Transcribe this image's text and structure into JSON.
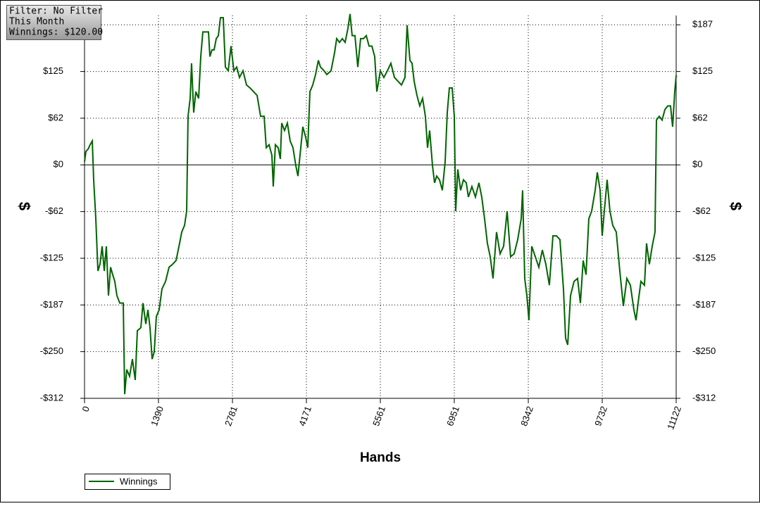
{
  "chart_data": {
    "type": "line",
    "info_lines": [
      "Filter: No Filter",
      "This Month",
      "Winnings: $120.00"
    ],
    "x_label": "Hands",
    "y_label": "$",
    "y2_label": "$",
    "xlim": [
      0,
      11122
    ],
    "xticks": [
      0,
      1390,
      2781,
      4171,
      5561,
      6951,
      8342,
      9732,
      11122
    ],
    "ylim": [
      -312.5,
      200
    ],
    "yticks": [
      {
        "value": -312.5,
        "label": "-$312"
      },
      {
        "value": -250,
        "label": "-$250"
      },
      {
        "value": -187.5,
        "label": "-$187"
      },
      {
        "value": -125,
        "label": "-$125"
      },
      {
        "value": -62.5,
        "label": "-$62"
      },
      {
        "value": 0,
        "label": "$0"
      },
      {
        "value": 62.5,
        "label": "$62"
      },
      {
        "value": 125,
        "label": "$125"
      },
      {
        "value": 187.5,
        "label": "$187"
      }
    ],
    "grid": true,
    "legend": "bottom-left",
    "x": [
      0,
      26,
      66,
      106,
      146,
      172,
      212,
      252,
      291,
      331,
      371,
      410,
      450,
      490,
      530,
      569,
      609,
      662,
      728,
      755,
      794,
      847,
      900,
      953,
      993,
      1059,
      1099,
      1152,
      1192,
      1231,
      1271,
      1311,
      1350,
      1403,
      1456,
      1523,
      1589,
      1655,
      1721,
      1787,
      1827,
      1880,
      1920,
      1946,
      1986,
      2012,
      2052,
      2092,
      2145,
      2185,
      2224,
      2277,
      2330,
      2357,
      2396,
      2436,
      2476,
      2516,
      2555,
      2608,
      2648,
      2701,
      2754,
      2807,
      2860,
      2913,
      2979,
      3045,
      3111,
      3178,
      3244,
      3310,
      3376,
      3416,
      3469,
      3522,
      3548,
      3588,
      3641,
      3681,
      3707,
      3760,
      3813,
      3866,
      3919,
      3972,
      4012,
      4051,
      4104,
      4157,
      4197,
      4237,
      4290,
      4343,
      4396,
      4435,
      4502,
      4555,
      4634,
      4700,
      4740,
      4793,
      4846,
      4899,
      4952,
      4991,
      5031,
      5084,
      5137,
      5190,
      5243,
      5296,
      5349,
      5402,
      5455,
      5495,
      5561,
      5627,
      5693,
      5759,
      5826,
      5892,
      5958,
      6024,
      6064,
      6117,
      6157,
      6196,
      6249,
      6302,
      6355,
      6408,
      6448,
      6488,
      6541,
      6580,
      6620,
      6673,
      6726,
      6779,
      6819,
      6858,
      6911,
      6951,
      6977,
      7017,
      7070,
      7123,
      7176,
      7216,
      7282,
      7348,
      7414,
      7467,
      7520,
      7573,
      7626,
      7679,
      7745,
      7812,
      7878,
      7944,
      8010,
      8076,
      8143,
      8209,
      8235,
      8275,
      8315,
      8354,
      8407,
      8474,
      8540,
      8606,
      8672,
      8738,
      8805,
      8871,
      8937,
      9003,
      9043,
      9083,
      9136,
      9202,
      9268,
      9321,
      9374,
      9427,
      9480,
      9533,
      9599,
      9639,
      9692,
      9731,
      9771,
      9824,
      9877,
      9930,
      9996,
      10062,
      10129,
      10195,
      10261,
      10327,
      10367,
      10406,
      10459,
      10526,
      10565,
      10618,
      10671,
      10724,
      10751,
      10804,
      10857,
      10910,
      10963,
      11016,
      11055,
      11095,
      11122
    ],
    "series": [
      {
        "name": "Winnings",
        "color": "#006400",
        "values": [
          4,
          18,
          21,
          27,
          32,
          -20,
          -72,
          -142,
          -133,
          -109,
          -142,
          -109,
          -175,
          -137,
          -147,
          -156,
          -175,
          -185,
          -185,
          -307,
          -274,
          -283,
          -260,
          -288,
          -222,
          -218,
          -185,
          -213,
          -194,
          -218,
          -260,
          -250,
          -203,
          -194,
          -166,
          -156,
          -137,
          -133,
          -128,
          -105,
          -90,
          -81,
          -62,
          65,
          89,
          136,
          70,
          98,
          89,
          145,
          178,
          178,
          178,
          145,
          154,
          154,
          169,
          173,
          197,
          197,
          131,
          126,
          159,
          126,
          131,
          117,
          126,
          107,
          103,
          98,
          93,
          65,
          65,
          23,
          27,
          13,
          -29,
          27,
          23,
          8,
          56,
          46,
          56,
          32,
          23,
          -1,
          -15,
          13,
          51,
          37,
          23,
          98,
          107,
          121,
          140,
          131,
          126,
          121,
          126,
          150,
          169,
          164,
          169,
          164,
          183,
          202,
          173,
          173,
          131,
          169,
          169,
          173,
          159,
          159,
          145,
          98,
          126,
          117,
          126,
          136,
          117,
          112,
          107,
          117,
          187,
          140,
          136,
          112,
          93,
          79,
          89,
          65,
          23,
          46,
          -1,
          -24,
          -15,
          -20,
          -34,
          4,
          70,
          103,
          103,
          65,
          -62,
          -6,
          -34,
          -20,
          -24,
          -43,
          -29,
          -43,
          -24,
          -43,
          -72,
          -105,
          -123,
          -152,
          -90,
          -119,
          -109,
          -62,
          -123,
          -119,
          -100,
          -72,
          -34,
          -152,
          -175,
          -208,
          -109,
          -123,
          -137,
          -114,
          -133,
          -161,
          -95,
          -95,
          -100,
          -166,
          -232,
          -241,
          -175,
          -156,
          -152,
          -185,
          -128,
          -147,
          -72,
          -62,
          -34,
          -10,
          -34,
          -95,
          -62,
          -20,
          -62,
          -81,
          -90,
          -142,
          -189,
          -152,
          -161,
          -194,
          -208,
          -185,
          -156,
          -161,
          -105,
          -133,
          -109,
          -90,
          60,
          65,
          60,
          74,
          79,
          79,
          51,
          98,
          120
        ]
      }
    ]
  }
}
